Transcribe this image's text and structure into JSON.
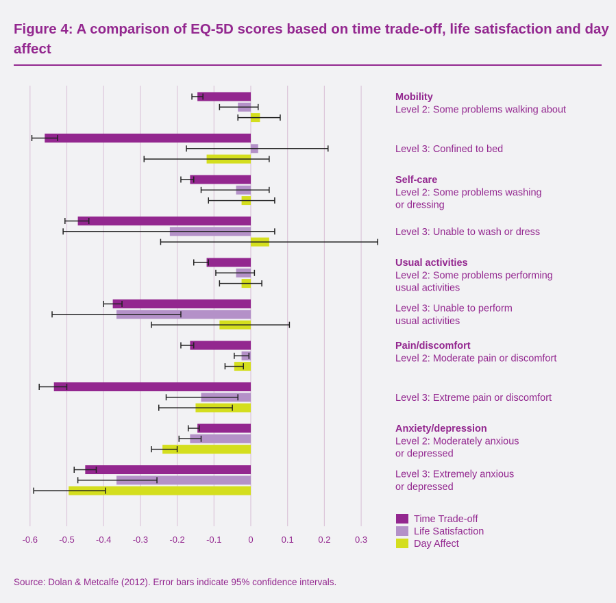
{
  "title": "Figure 4: A comparison of EQ-5D scores based on time trade-off, life satisfaction and day affect",
  "source": "Source: Dolan & Metcalfe (2012). Error bars indicate 95% confidence intervals.",
  "colors": {
    "text": "#93278f",
    "time_tradeoff": "#93278f",
    "life_satisfaction": "#b491c8",
    "day_affect": "#d4de1e",
    "grid": "#dcc6da",
    "error_bar": "#222222"
  },
  "chart_data": {
    "type": "bar",
    "orientation": "horizontal",
    "xlim": [
      -0.6,
      0.35
    ],
    "xticks": [
      "-0.6",
      "-0.5",
      "-0.4",
      "-0.3",
      "-0.2",
      "-0.1",
      "0",
      "0.1",
      "0.2",
      "0.3"
    ],
    "tick_values": [
      -0.6,
      -0.5,
      -0.4,
      -0.3,
      -0.2,
      -0.1,
      0,
      0.1,
      0.2,
      0.3
    ],
    "grid": true,
    "legend_position": "bottom-right",
    "groups": [
      {
        "category": "Mobility",
        "lines": [
          "Level 2: Some problems walking about"
        ]
      },
      {
        "category": "",
        "lines": [
          "Level 3: Confined to bed"
        ]
      },
      {
        "category": "Self-care",
        "lines": [
          "Level 2: Some problems washing",
          "or dressing"
        ]
      },
      {
        "category": "",
        "lines": [
          "Level 3: Unable to wash or dress"
        ]
      },
      {
        "category": "Usual activities",
        "lines": [
          "Level 2: Some problems performing",
          "usual activities"
        ]
      },
      {
        "category": "",
        "lines": [
          "Level 3: Unable to perform",
          "usual activities"
        ]
      },
      {
        "category": "Pain/discomfort",
        "lines": [
          "Level 2: Moderate pain or discomfort"
        ]
      },
      {
        "category": "",
        "lines": [
          "Level 3: Extreme pain or discomfort"
        ]
      },
      {
        "category": "Anxiety/depression",
        "lines": [
          "Level 2: Moderately anxious",
          "or depressed"
        ]
      },
      {
        "category": "",
        "lines": [
          "Level 3: Extremely anxious",
          "or depressed"
        ]
      }
    ],
    "series": [
      {
        "name": "Time Trade-off",
        "values": [
          -0.145,
          -0.56,
          -0.165,
          -0.47,
          -0.12,
          -0.375,
          -0.165,
          -0.535,
          -0.145,
          -0.45
        ],
        "ci_low": [
          -0.16,
          -0.595,
          -0.19,
          -0.505,
          -0.155,
          -0.4,
          -0.19,
          -0.575,
          -0.17,
          -0.48
        ],
        "ci_high": [
          -0.13,
          -0.525,
          -0.155,
          -0.44,
          -0.115,
          -0.35,
          -0.155,
          -0.5,
          -0.14,
          -0.42
        ]
      },
      {
        "name": "Life Satisfaction",
        "values": [
          -0.035,
          0.02,
          -0.04,
          -0.22,
          -0.04,
          -0.365,
          -0.025,
          -0.135,
          -0.165,
          -0.365
        ],
        "ci_low": [
          -0.085,
          -0.175,
          -0.135,
          -0.51,
          -0.095,
          -0.54,
          -0.045,
          -0.23,
          -0.195,
          -0.47
        ],
        "ci_high": [
          0.02,
          0.21,
          0.05,
          0.065,
          0.01,
          -0.19,
          -0.005,
          -0.035,
          -0.135,
          -0.255
        ]
      },
      {
        "name": "Day Affect",
        "values": [
          0.025,
          -0.12,
          -0.025,
          0.05,
          -0.025,
          -0.085,
          -0.045,
          -0.15,
          -0.24,
          -0.495
        ],
        "ci_low": [
          -0.035,
          -0.29,
          -0.115,
          -0.245,
          -0.085,
          -0.27,
          -0.07,
          -0.25,
          -0.27,
          -0.59
        ],
        "ci_high": [
          0.08,
          0.05,
          0.065,
          0.345,
          0.03,
          0.105,
          -0.02,
          -0.05,
          -0.2,
          -0.395
        ]
      }
    ]
  }
}
